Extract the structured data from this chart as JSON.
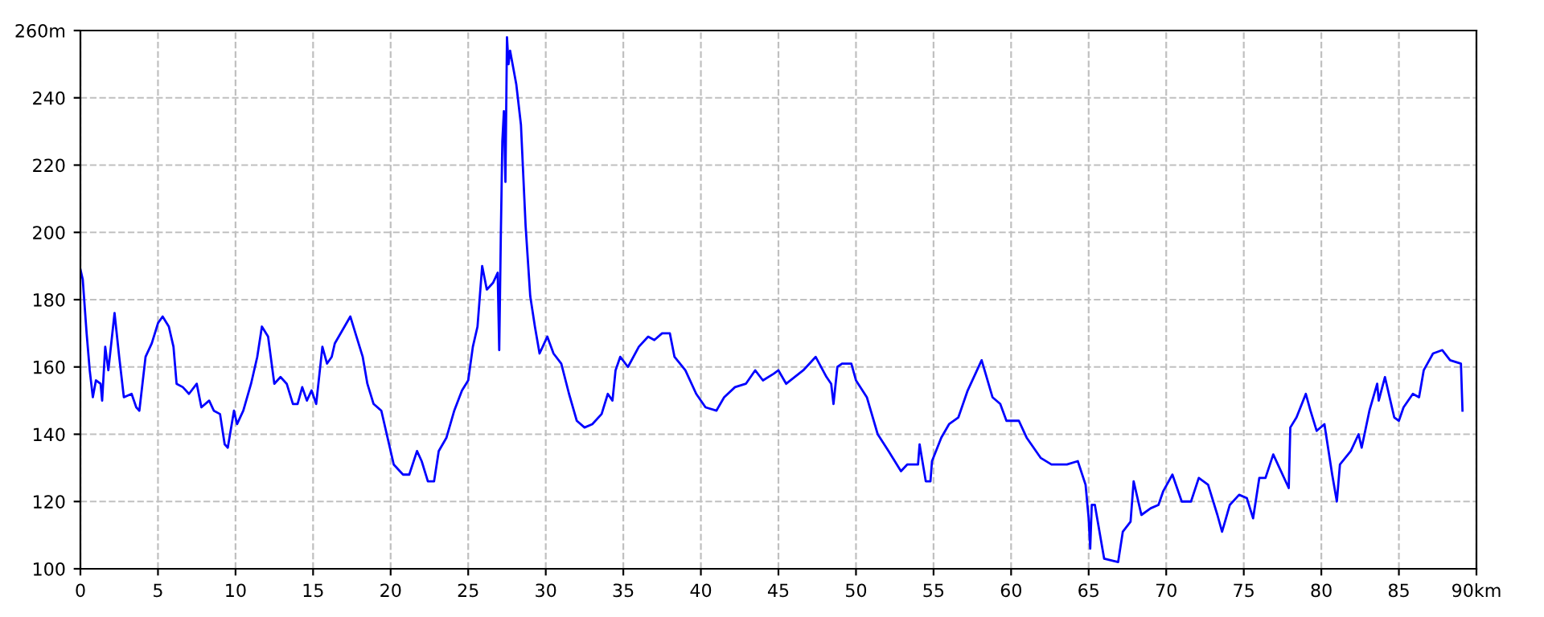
{
  "chart_data": {
    "type": "line",
    "xlim": [
      0,
      90
    ],
    "ylim": [
      100,
      260
    ],
    "xticks": [
      0,
      5,
      10,
      15,
      20,
      25,
      30,
      35,
      40,
      45,
      50,
      55,
      60,
      65,
      70,
      75,
      80,
      85,
      {
        "value": 90,
        "label": "90km"
      }
    ],
    "yticks": [
      100,
      120,
      140,
      160,
      180,
      200,
      220,
      240,
      {
        "value": 260,
        "label": "260m"
      }
    ],
    "grid": true,
    "legend": false,
    "marker": "none",
    "line_style": "solid",
    "series": [
      {
        "color": "#0000ff",
        "x": [
          0,
          0.15,
          0.4,
          0.6,
          0.8,
          1.0,
          1.3,
          1.4,
          1.6,
          1.8,
          2.2,
          2.5,
          2.8,
          3.3,
          3.6,
          3.8,
          4.2,
          4.6,
          5.0,
          5.3,
          5.7,
          6.0,
          6.2,
          6.6,
          7.0,
          7.5,
          7.8,
          8.3,
          8.6,
          9.0,
          9.3,
          9.5,
          9.9,
          10.1,
          10.5,
          11.0,
          11.4,
          11.7,
          12.1,
          12.5,
          12.9,
          13.3,
          13.7,
          14.0,
          14.3,
          14.6,
          14.9,
          15.2,
          15.6,
          15.9,
          16.2,
          16.4,
          16.9,
          17.4,
          17.8,
          18.2,
          18.5,
          18.9,
          19.4,
          19.8,
          20.2,
          20.8,
          21.2,
          21.7,
          22.0,
          22.4,
          22.8,
          23.1,
          23.6,
          24.1,
          24.6,
          25.0,
          25.3,
          25.6,
          25.9,
          26.2,
          26.6,
          26.9,
          27.0,
          27.1,
          27.2,
          27.3,
          27.4,
          27.5,
          27.6,
          27.7,
          27.9,
          28.1,
          28.4,
          28.7,
          29.0,
          29.3,
          29.6,
          30.1,
          30.5,
          31.0,
          31.5,
          32.0,
          32.5,
          33.0,
          33.6,
          34.0,
          34.3,
          34.5,
          34.8,
          35.3,
          36.0,
          36.6,
          37.0,
          37.5,
          38.0,
          38.3,
          39.0,
          39.7,
          40.3,
          41.0,
          41.5,
          42.2,
          42.9,
          43.5,
          44.0,
          44.7,
          45.0,
          45.5,
          46.6,
          47.4,
          48.1,
          48.4,
          48.55,
          48.8,
          49.1,
          49.7,
          50.0,
          50.7,
          51.4,
          52.1,
          52.9,
          53.3,
          54.0,
          54.1,
          54.5,
          54.8,
          54.9,
          55.5,
          56.0,
          56.6,
          57.2,
          58.1,
          58.8,
          59.3,
          59.7,
          60.5,
          61.0,
          61.9,
          62.6,
          63.6,
          64.3,
          64.8,
          65.0,
          65.1,
          65.2,
          65.4,
          66.0,
          66.9,
          67.2,
          67.7,
          67.9,
          68.4,
          69.0,
          69.5,
          69.8,
          70.4,
          71.0,
          71.6,
          72.1,
          72.7,
          73.3,
          73.6,
          74.1,
          74.7,
          75.2,
          75.6,
          76.0,
          76.4,
          76.9,
          77.9,
          78.0,
          78.4,
          79.0,
          79.3,
          79.7,
          80.2,
          80.7,
          81.0,
          81.2,
          81.9,
          82.4,
          82.6,
          83.1,
          83.6,
          83.7,
          84.1,
          84.7,
          85.0,
          85.3,
          85.9,
          86.3,
          86.6,
          87.2,
          87.8,
          88.3,
          89.0,
          89.1
        ],
        "values": [
          189,
          186,
          170,
          159,
          151,
          156,
          155,
          150,
          166,
          159,
          176,
          163,
          151,
          152,
          148,
          147,
          163,
          167,
          173,
          175,
          172,
          166,
          155,
          154,
          152,
          155,
          148,
          150,
          147,
          146,
          137,
          136,
          147,
          143,
          147,
          155,
          163,
          172,
          169,
          155,
          157,
          155,
          149,
          149,
          154,
          150,
          153,
          149,
          166,
          161,
          163,
          167,
          171,
          175,
          169,
          163,
          155,
          149,
          147,
          139,
          131,
          128,
          128,
          135,
          132,
          126,
          126,
          135,
          139,
          147,
          153,
          156,
          166,
          172,
          190,
          183,
          185,
          188,
          165,
          198,
          227,
          236,
          215,
          258,
          250,
          254,
          249,
          244,
          232,
          202,
          181,
          172,
          164,
          169,
          164,
          161,
          152,
          144,
          142,
          143,
          146,
          152,
          150,
          159,
          163,
          160,
          166,
          169,
          168,
          170,
          170,
          163,
          159,
          152,
          148,
          147,
          151,
          154,
          155,
          159,
          156,
          158,
          159,
          155,
          159,
          163,
          157,
          155,
          149,
          160,
          161,
          161,
          156,
          151,
          140,
          135,
          129,
          131,
          131,
          137,
          126,
          126,
          132,
          139,
          143,
          145,
          153,
          162,
          151,
          149,
          144,
          144,
          139,
          133,
          131,
          131,
          132,
          125,
          115,
          106,
          119,
          119,
          103,
          102,
          111,
          114,
          126,
          116,
          118,
          119,
          123,
          128,
          120,
          120,
          127,
          125,
          116,
          111,
          119,
          122,
          121,
          115,
          127,
          127,
          134,
          124,
          142,
          145,
          152,
          147,
          141,
          143,
          128,
          120,
          131,
          135,
          140,
          136,
          147,
          155,
          150,
          157,
          145,
          144,
          148,
          152,
          151,
          159,
          164,
          165,
          162,
          161,
          147
        ]
      }
    ]
  }
}
